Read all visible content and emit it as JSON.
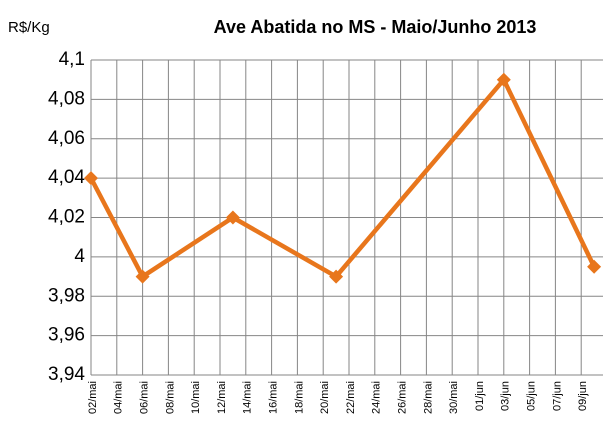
{
  "chart_data": {
    "type": "line",
    "title": "Ave Abatida no MS - Maio/Junho 2013",
    "y_label": "R$/Kg",
    "x": [
      "02/mai",
      "06/mai",
      "13/mai",
      "21/mai",
      "03/jun",
      "10/jun"
    ],
    "series": [
      {
        "name": "R$/Kg",
        "color": "#e8761c",
        "values": [
          4.04,
          3.99,
          4.02,
          3.99,
          4.09,
          3.995
        ]
      }
    ],
    "xticks": [
      "02/mai",
      "04/mai",
      "06/mai",
      "08/mai",
      "10/mai",
      "12/mai",
      "14/mai",
      "16/mai",
      "18/mai",
      "20/mai",
      "22/mai",
      "24/mai",
      "26/mai",
      "28/mai",
      "30/mai",
      "01/jun",
      "03/jun",
      "05/jun",
      "07/jun",
      "09/jun"
    ],
    "ylim": [
      3.94,
      4.1
    ],
    "yticks": [
      {
        "value": 3.94,
        "label": "3,94"
      },
      {
        "value": 3.96,
        "label": "3,96"
      },
      {
        "value": 3.98,
        "label": "3,98"
      },
      4,
      {
        "value": 4.02,
        "label": "4,02"
      },
      {
        "value": 4.04,
        "label": "4,04"
      },
      {
        "value": 4.06,
        "label": "4,06"
      },
      {
        "value": 4.08,
        "label": "4,08"
      },
      {
        "value": 4.1,
        "label": "4,1"
      }
    ],
    "grid": true
  }
}
